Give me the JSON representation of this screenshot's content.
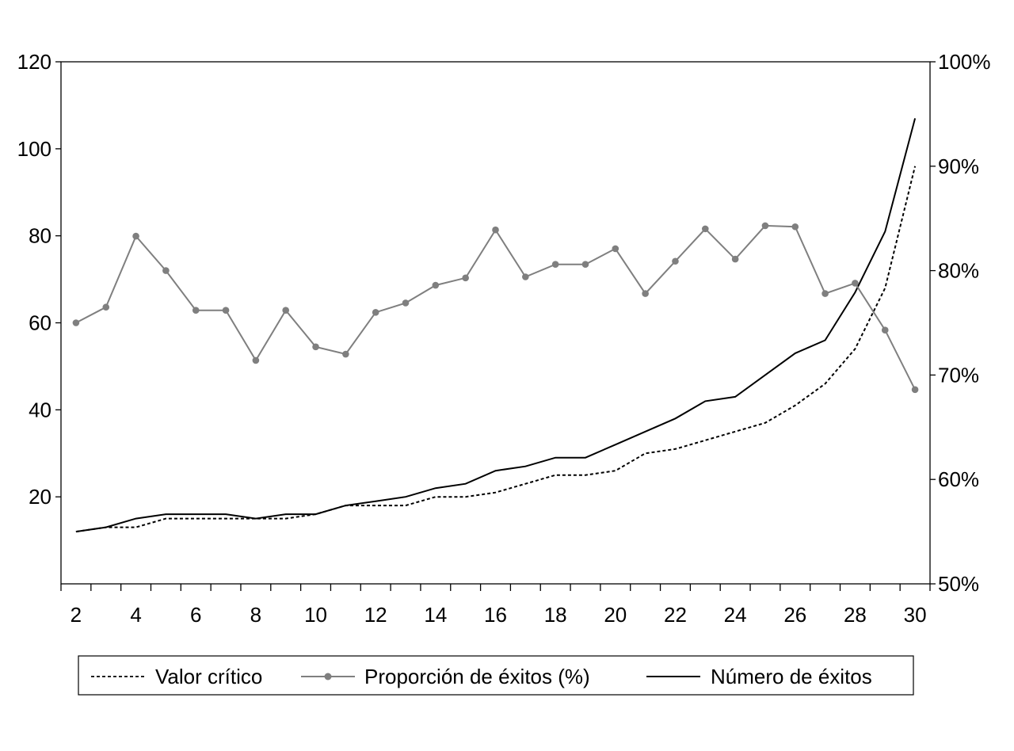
{
  "chart_data": {
    "type": "line",
    "title": "",
    "x": [
      2,
      3,
      4,
      5,
      6,
      7,
      8,
      9,
      10,
      11,
      12,
      13,
      14,
      15,
      16,
      17,
      18,
      19,
      20,
      21,
      22,
      23,
      24,
      25,
      26,
      27,
      28,
      29,
      30
    ],
    "x_tick_labels": [
      "2",
      "4",
      "6",
      "8",
      "10",
      "12",
      "14",
      "16",
      "18",
      "20",
      "22",
      "24",
      "26",
      "28",
      "30"
    ],
    "y_left": {
      "ylim": [
        0,
        120
      ],
      "tick_labels": [
        "20",
        "40",
        "60",
        "80",
        "100",
        "120"
      ],
      "tick_values": [
        20,
        40,
        60,
        80,
        100,
        120
      ]
    },
    "y_right": {
      "ylim": [
        50,
        100
      ],
      "tick_labels": [
        "50%",
        "60%",
        "70%",
        "80%",
        "90%",
        "100%"
      ],
      "tick_values": [
        50,
        60,
        70,
        80,
        90,
        100
      ]
    },
    "series": [
      {
        "name": "Valor crítico",
        "axis": "left",
        "style": "dashed",
        "color": "#000000",
        "values": [
          12,
          13,
          13,
          15,
          15,
          15,
          15,
          15,
          16,
          18,
          18,
          18,
          20,
          20,
          21,
          23,
          25,
          25,
          26,
          30,
          31,
          33,
          35,
          37,
          41,
          46,
          54,
          68,
          96
        ]
      },
      {
        "name": "Proporción de éxitos (%)",
        "axis": "right",
        "style": "markers",
        "color": "#7f7f7f",
        "values": [
          75.0,
          76.5,
          83.3,
          80.0,
          76.2,
          76.2,
          71.4,
          76.2,
          72.7,
          72.0,
          76.0,
          76.9,
          78.6,
          79.3,
          83.9,
          79.4,
          80.6,
          80.6,
          82.1,
          77.8,
          80.9,
          84.0,
          81.1,
          84.3,
          84.2,
          77.8,
          78.8,
          74.3,
          68.6
        ]
      },
      {
        "name": "Número de éxitos",
        "axis": "left",
        "style": "solid",
        "color": "#000000",
        "values": [
          12,
          13,
          15,
          16,
          16,
          16,
          15,
          16,
          16,
          18,
          19,
          20,
          22,
          23,
          26,
          27,
          29,
          29,
          32,
          35,
          38,
          42,
          43,
          48,
          53,
          56,
          67,
          81,
          107
        ]
      }
    ],
    "legend_position": "bottom",
    "grid": false
  }
}
